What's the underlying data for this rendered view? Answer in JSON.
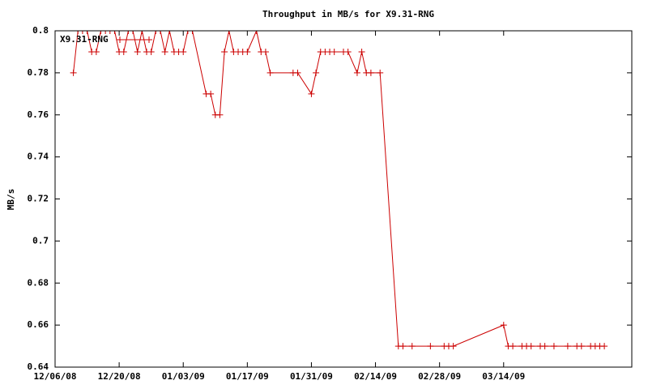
{
  "chart_data": {
    "type": "line",
    "title": "Throughput in MB/s for X9.31-RNG",
    "y_label": "MB/s",
    "x": [
      "12/10/08",
      "12/11/08",
      "12/12/08",
      "12/13/08",
      "12/14/08",
      "12/15/08",
      "12/16/08",
      "12/17/08",
      "12/18/08",
      "12/19/08",
      "12/20/08",
      "12/21/08",
      "12/22/08",
      "12/23/08",
      "12/24/08",
      "12/25/08",
      "12/26/08",
      "12/27/08",
      "12/28/08",
      "12/29/08",
      "12/30/08",
      "12/31/08",
      "01/01/09",
      "01/02/09",
      "01/03/09",
      "01/04/09",
      "01/05/09",
      "01/08/09",
      "01/09/09",
      "01/10/09",
      "01/11/09",
      "01/12/09",
      "01/13/09",
      "01/14/09",
      "01/15/09",
      "01/16/09",
      "01/17/09",
      "01/19/09",
      "01/20/09",
      "01/21/09",
      "01/22/09",
      "01/27/09",
      "01/28/09",
      "01/31/09",
      "02/01/09",
      "02/02/09",
      "02/03/09",
      "02/04/09",
      "02/05/09",
      "02/07/09",
      "02/08/09",
      "02/10/09",
      "02/11/09",
      "02/12/09",
      "02/13/09",
      "02/15/09",
      "02/19/09",
      "02/20/09",
      "02/22/09",
      "02/26/09",
      "03/01/09",
      "03/02/09",
      "03/03/09",
      "03/14/09",
      "03/15/09",
      "03/16/09",
      "03/18/09",
      "03/19/09",
      "03/20/09",
      "03/22/09",
      "03/23/09",
      "03/25/09",
      "03/28/09",
      "03/30/09",
      "03/31/09",
      "04/02/09",
      "04/03/09",
      "04/04/09",
      "04/05/09"
    ],
    "series": [
      {
        "name": "X9.31-RNG",
        "color": "#cc0000",
        "values": [
          0.78,
          0.8,
          0.8,
          0.8,
          0.79,
          0.79,
          0.8,
          0.8,
          0.8,
          0.8,
          0.79,
          0.79,
          0.8,
          0.8,
          0.79,
          0.8,
          0.79,
          0.79,
          0.8,
          0.8,
          0.79,
          0.8,
          0.79,
          0.79,
          0.79,
          0.8,
          0.8,
          0.77,
          0.77,
          0.76,
          0.76,
          0.79,
          0.8,
          0.79,
          0.79,
          0.79,
          0.79,
          0.8,
          0.79,
          0.79,
          0.78,
          0.78,
          0.78,
          0.77,
          0.78,
          0.79,
          0.79,
          0.79,
          0.79,
          0.79,
          0.79,
          0.78,
          0.79,
          0.78,
          0.78,
          0.78,
          0.65,
          0.65,
          0.65,
          0.65,
          0.65,
          0.65,
          0.65,
          0.66,
          0.65,
          0.65,
          0.65,
          0.65,
          0.65,
          0.65,
          0.65,
          0.65,
          0.65,
          0.65,
          0.65,
          0.65,
          0.65,
          0.65,
          0.65
        ]
      }
    ],
    "xlim": [
      "12/06/08",
      "04/11/09"
    ],
    "xticks": [
      "12/06/08",
      "12/20/08",
      "01/03/09",
      "01/17/09",
      "01/31/09",
      "02/14/09",
      "02/28/09",
      "03/14/09"
    ],
    "ylim": [
      0.64,
      0.8
    ],
    "yticks": [
      0.64,
      0.66,
      0.68,
      0.7,
      0.72,
      0.74,
      0.76,
      0.78,
      0.8
    ],
    "legend": "top-left"
  }
}
